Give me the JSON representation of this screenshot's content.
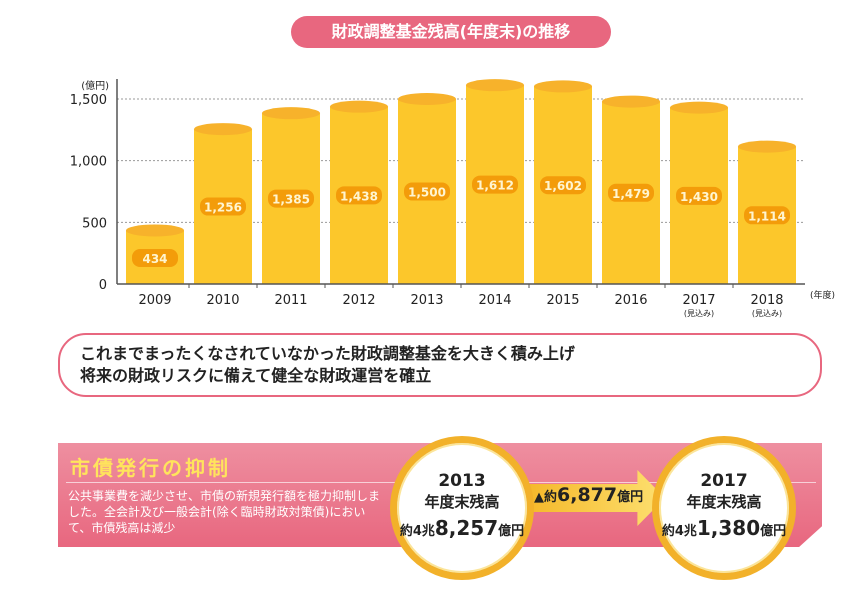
{
  "title": "財政調整基金残高(年度末)の推移",
  "chart_data": {
    "type": "bar",
    "title": "財政調整基金残高(年度末)の推移",
    "ylabel": "(億円)",
    "xlabel": "(年度)",
    "categories": [
      "2009",
      "2010",
      "2011",
      "2012",
      "2013",
      "2014",
      "2015",
      "2016",
      "2017",
      "2018"
    ],
    "category_notes": [
      "",
      "",
      "",
      "",
      "",
      "",
      "",
      "",
      "(見込み)",
      "(見込み)"
    ],
    "values": [
      434,
      1256,
      1385,
      1438,
      1500,
      1612,
      1602,
      1479,
      1430,
      1114
    ],
    "value_labels": [
      "434",
      "1,256",
      "1,385",
      "1,438",
      "1,500",
      "1,612",
      "1,602",
      "1,479",
      "1,430",
      "1,114"
    ],
    "ylim": [
      0,
      1500
    ],
    "yticks": [
      0,
      500,
      1000,
      1500
    ],
    "ytick_labels": [
      "0",
      "500",
      "1,000",
      "1,500"
    ],
    "grid": true,
    "colors": {
      "bar": "#fcc72b",
      "bar_top": "#f7b22b",
      "label_bg": "#f39c0a"
    }
  },
  "message": {
    "line1": "これまでまったくなされていなかった財政調整基金を大きく積み上げ",
    "line2": "将来の財政リスクに備えて健全な財政運営を確立"
  },
  "bond": {
    "title": "市債発行の抑制",
    "text": "公共事業費を減少させ、市債の新規発行額を極力抑制しました。全会計及び一般会計(除く臨時財政対策債)において、市債残高は減少",
    "left": {
      "year": "2013",
      "label": "年度末残高",
      "prefix": "約4兆",
      "amount": "8,257",
      "unit": "億円"
    },
    "change": {
      "prefix": "▲約",
      "amount": "6,877",
      "unit": "億円"
    },
    "right": {
      "year": "2017",
      "label": "年度末残高",
      "prefix": "約4兆",
      "amount": "1,380",
      "unit": "億円"
    }
  }
}
